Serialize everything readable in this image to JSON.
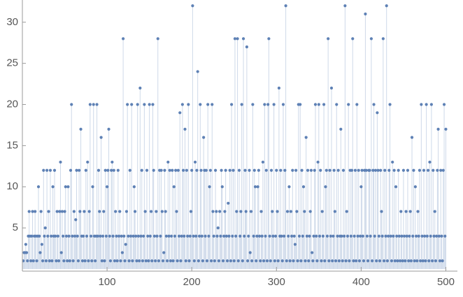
{
  "chart_data": {
    "type": "stem",
    "xlim": [
      0,
      512
    ],
    "ylim": [
      0,
      32.7
    ],
    "xticks": [
      100,
      200,
      300,
      400,
      500
    ],
    "yticks": [
      5,
      10,
      15,
      20,
      25,
      30
    ],
    "color": "#5e81b5",
    "x": [
      1,
      2,
      3,
      4,
      5,
      6,
      7,
      8,
      9,
      10,
      11,
      12,
      13,
      14,
      15,
      16,
      17,
      18,
      19,
      20,
      21,
      22,
      23,
      24,
      25,
      26,
      27,
      28,
      29,
      30,
      31,
      32,
      33,
      34,
      35,
      36,
      37,
      38,
      39,
      40,
      41,
      42,
      43,
      44,
      45,
      46,
      47,
      48,
      49,
      50,
      51,
      52,
      53,
      54,
      55,
      56,
      57,
      58,
      59,
      60,
      61,
      62,
      63,
      64,
      65,
      66,
      67,
      68,
      69,
      70,
      71,
      72,
      73,
      74,
      75,
      76,
      77,
      78,
      79,
      80,
      81,
      82,
      83,
      84,
      85,
      86,
      87,
      88,
      89,
      90,
      91,
      92,
      93,
      94,
      95,
      96,
      97,
      98,
      99,
      100,
      101,
      102,
      103,
      104,
      105,
      106,
      107,
      108,
      109,
      110,
      111,
      112,
      113,
      114,
      115,
      116,
      117,
      118,
      119,
      120,
      121,
      122,
      123,
      124,
      125,
      126,
      127,
      128,
      129,
      130,
      131,
      132,
      133,
      134,
      135,
      136,
      137,
      138,
      139,
      140,
      141,
      142,
      143,
      144,
      145,
      146,
      147,
      148,
      149,
      150,
      151,
      152,
      153,
      154,
      155,
      156,
      157,
      158,
      159,
      160,
      161,
      162,
      163,
      164,
      165,
      166,
      167,
      168,
      169,
      170,
      171,
      172,
      173,
      174,
      175,
      176,
      177,
      178,
      179,
      180,
      181,
      182,
      183,
      184,
      185,
      186,
      187,
      188,
      189,
      190,
      191,
      192,
      193,
      194,
      195,
      196,
      197,
      198,
      199,
      200,
      201,
      202,
      203,
      204,
      205,
      206,
      207,
      208,
      209,
      210,
      211,
      212,
      213,
      214,
      215,
      216,
      217,
      218,
      219,
      220,
      221,
      222,
      223,
      224,
      225,
      226,
      227,
      228,
      229,
      230,
      231,
      232,
      233,
      234,
      235,
      236,
      237,
      238,
      239,
      240,
      241,
      242,
      243,
      244,
      245,
      246,
      247,
      248,
      249,
      250,
      251,
      252,
      253,
      254,
      255,
      256,
      257,
      258,
      259,
      260,
      261,
      262,
      263,
      264,
      265,
      266,
      267,
      268,
      269,
      270,
      271,
      272,
      273,
      274,
      275,
      276,
      277,
      278,
      279,
      280,
      281,
      282,
      283,
      284,
      285,
      286,
      287,
      288,
      289,
      290,
      291,
      292,
      293,
      294,
      295,
      296,
      297,
      298,
      299,
      300,
      301,
      302,
      303,
      304,
      305,
      306,
      307,
      308,
      309,
      310,
      311,
      312,
      313,
      314,
      315,
      316,
      317,
      318,
      319,
      320,
      321,
      322,
      323,
      324,
      325,
      326,
      327,
      328,
      329,
      330,
      331,
      332,
      333,
      334,
      335,
      336,
      337,
      338,
      339,
      340,
      341,
      342,
      343,
      344,
      345,
      346,
      347,
      348,
      349,
      350,
      351,
      352,
      353,
      354,
      355,
      356,
      357,
      358,
      359,
      360,
      361,
      362,
      363,
      364,
      365,
      366,
      367,
      368,
      369,
      370,
      371,
      372,
      373,
      374,
      375,
      376,
      377,
      378,
      379,
      380,
      381,
      382,
      383,
      384,
      385,
      386,
      387,
      388,
      389,
      390,
      391,
      392,
      393,
      394,
      395,
      396,
      397,
      398,
      399,
      400,
      401,
      402,
      403,
      404,
      405,
      406,
      407,
      408,
      409,
      410,
      411,
      412,
      413,
      414,
      415,
      416,
      417,
      418,
      419,
      420,
      421,
      422,
      423,
      424,
      425,
      426,
      427,
      428,
      429,
      430,
      431,
      432,
      433,
      434,
      435,
      436,
      437,
      438,
      439,
      440,
      441,
      442,
      443,
      444,
      445,
      446,
      447,
      448,
      449,
      450,
      451,
      452,
      453,
      454,
      455,
      456,
      457,
      458,
      459,
      460,
      461,
      462,
      463,
      464,
      465,
      466,
      467,
      468,
      469,
      470,
      471,
      472,
      473,
      474,
      475,
      476,
      477,
      478,
      479,
      480,
      481,
      482,
      483,
      484,
      485,
      486,
      487,
      488,
      489,
      490,
      491,
      492,
      493,
      494,
      495,
      496,
      497,
      498,
      499,
      500
    ],
    "values": [
      1,
      2,
      2,
      3,
      2,
      1,
      4,
      7,
      4,
      1,
      4,
      7,
      1,
      4,
      7,
      4,
      1,
      4,
      10,
      4,
      2,
      7,
      3,
      1,
      12,
      4,
      5,
      1,
      12,
      4,
      7,
      1,
      12,
      4,
      1,
      10,
      4,
      12,
      4,
      1,
      7,
      4,
      1,
      7,
      13,
      2,
      7,
      4,
      1,
      7,
      10,
      4,
      1,
      10,
      4,
      1,
      12,
      20,
      4,
      1,
      7,
      4,
      6,
      12,
      4,
      1,
      12,
      7,
      17,
      4,
      1,
      4,
      7,
      1,
      12,
      4,
      13,
      1,
      7,
      20,
      4,
      1,
      10,
      20,
      4,
      1,
      4,
      20,
      4,
      12,
      7,
      4,
      16,
      1,
      4,
      7,
      1,
      12,
      4,
      10,
      12,
      17,
      4,
      1,
      12,
      13,
      4,
      12,
      1,
      7,
      4,
      1,
      12,
      4,
      7,
      1,
      4,
      2,
      28,
      4,
      1,
      3,
      7,
      20,
      4,
      1,
      12,
      4,
      20,
      1,
      4,
      10,
      7,
      4,
      1,
      20,
      4,
      1,
      22,
      4,
      12,
      1,
      4,
      20,
      7,
      1,
      12,
      4,
      1,
      20,
      4,
      7,
      1,
      20,
      12,
      4,
      1,
      7,
      4,
      28,
      1,
      12,
      4,
      12,
      7,
      1,
      2,
      12,
      7,
      4,
      1,
      13,
      4,
      12,
      1,
      4,
      12,
      1,
      10,
      4,
      12,
      7,
      1,
      12,
      4,
      19,
      1,
      4,
      20,
      12,
      4,
      17,
      1,
      12,
      4,
      20,
      1,
      4,
      7,
      12,
      32,
      4,
      1,
      13,
      4,
      12,
      24,
      1,
      4,
      20,
      12,
      4,
      1,
      16,
      12,
      4,
      12,
      1,
      20,
      4,
      10,
      12,
      1,
      20,
      7,
      4,
      1,
      12,
      7,
      4,
      5,
      1,
      7,
      4,
      12,
      10,
      1,
      4,
      7,
      12,
      4,
      1,
      8,
      4,
      12,
      1,
      20,
      4,
      12,
      1,
      28,
      4,
      7,
      28,
      1,
      12,
      4,
      7,
      20,
      1,
      28,
      4,
      12,
      7,
      27,
      1,
      4,
      12,
      2,
      7,
      1,
      20,
      4,
      12,
      10,
      1,
      4,
      10,
      12,
      4,
      1,
      7,
      4,
      13,
      1,
      20,
      4,
      12,
      1,
      20,
      28,
      4,
      1,
      12,
      7,
      4,
      20,
      1,
      4,
      12,
      7,
      1,
      22,
      4,
      12,
      4,
      1,
      20,
      4,
      12,
      32,
      1,
      7,
      4,
      10,
      1,
      7,
      4,
      12,
      1,
      4,
      3,
      12,
      7,
      1,
      20,
      4,
      20,
      1,
      12,
      4,
      10,
      7,
      1,
      16,
      4,
      12,
      1,
      4,
      7,
      12,
      2,
      1,
      4,
      12,
      20,
      4,
      1,
      13,
      20,
      4,
      12,
      1,
      7,
      4,
      20,
      1,
      10,
      12,
      4,
      28,
      1,
      12,
      4,
      22,
      1,
      4,
      12,
      7,
      1,
      20,
      4,
      12,
      1,
      4,
      17,
      4,
      1,
      12,
      4,
      32,
      1,
      7,
      4,
      20,
      1,
      12,
      4,
      12,
      28,
      1,
      4,
      12,
      1,
      20,
      4,
      12,
      1,
      4,
      10,
      12,
      4,
      1,
      12,
      31,
      12,
      4,
      1,
      12,
      12,
      4,
      28,
      1,
      12,
      20,
      4,
      12,
      1,
      19,
      12,
      4,
      1,
      12,
      7,
      4,
      28,
      1,
      12,
      4,
      32,
      1,
      4,
      12,
      20,
      4,
      1,
      13,
      4,
      12,
      1,
      10,
      4,
      1,
      12,
      4,
      1,
      7,
      4,
      1,
      12,
      4,
      1,
      7,
      4,
      12,
      1,
      4,
      7,
      1,
      16,
      4,
      12,
      1,
      10,
      4,
      1,
      7,
      4,
      12,
      1,
      20,
      4,
      1,
      12,
      4,
      1,
      20,
      4,
      12,
      1,
      13,
      4,
      20,
      1,
      12,
      4,
      7,
      1,
      4,
      12,
      17,
      4,
      1,
      12,
      4,
      1,
      12,
      20,
      4,
      17
    ]
  }
}
